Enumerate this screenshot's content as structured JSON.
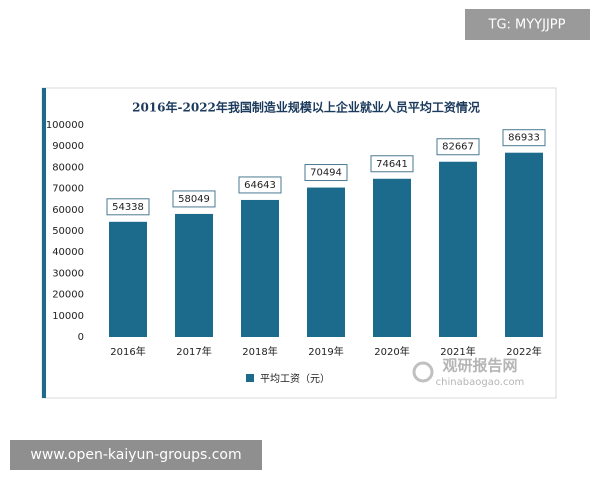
{
  "chart_data": {
    "type": "bar",
    "title": "2016年-2022年我国制造业规模以上企业就业人员平均工资情况",
    "categories": [
      "2016年",
      "2017年",
      "2018年",
      "2019年",
      "2020年",
      "2021年",
      "2022年"
    ],
    "series": [
      {
        "name": "平均工资（元）",
        "color": "#1c6a8c",
        "values": [
          54338,
          58049,
          64643,
          70494,
          74641,
          82667,
          86933
        ]
      }
    ],
    "ylim": [
      0,
      100000
    ],
    "yticks": [
      0,
      10000,
      20000,
      30000,
      40000,
      50000,
      60000,
      70000,
      80000,
      90000,
      100000
    ],
    "grid": false,
    "legend": "bottom"
  },
  "overlays": {
    "top_tag": "TG: MYYJJPP",
    "bottom_url": "www.open-kaiyun-groups.com",
    "watermark_name": "观研报告网",
    "watermark_site": "chinabaogao.com"
  }
}
